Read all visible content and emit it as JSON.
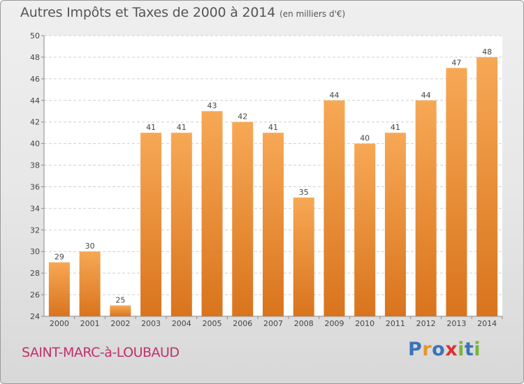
{
  "title": "Autres Impôts et Taxes de 2000 à 2014",
  "unit": "(en milliers d'€)",
  "commune": "SAINT-MARC-à-LOUBAUD",
  "logo": {
    "letters": [
      "P",
      "r",
      "o",
      "x",
      "i",
      "t",
      "i"
    ],
    "colors": [
      "#3a73b9",
      "#e6952b",
      "#3a73b9",
      "#e0302b",
      "#79b53a",
      "#3a73b9",
      "#79b53a"
    ]
  },
  "colors": {
    "bar_top": "#f7a855",
    "bar_bottom": "#d9741d",
    "grid": "#cfcfcf",
    "axis_text": "#444444"
  },
  "chart_data": {
    "type": "bar",
    "categories": [
      "2000",
      "2001",
      "2002",
      "2003",
      "2004",
      "2005",
      "2006",
      "2007",
      "2008",
      "2009",
      "2010",
      "2011",
      "2012",
      "2013",
      "2014"
    ],
    "values": [
      29,
      30,
      25,
      41,
      41,
      43,
      42,
      41,
      35,
      44,
      40,
      41,
      44,
      47,
      48
    ],
    "yticks": [
      24,
      26,
      28,
      30,
      32,
      34,
      36,
      38,
      40,
      42,
      44,
      46,
      48,
      50
    ],
    "ylim": [
      24,
      50
    ],
    "grid": true,
    "data_labels": true
  }
}
